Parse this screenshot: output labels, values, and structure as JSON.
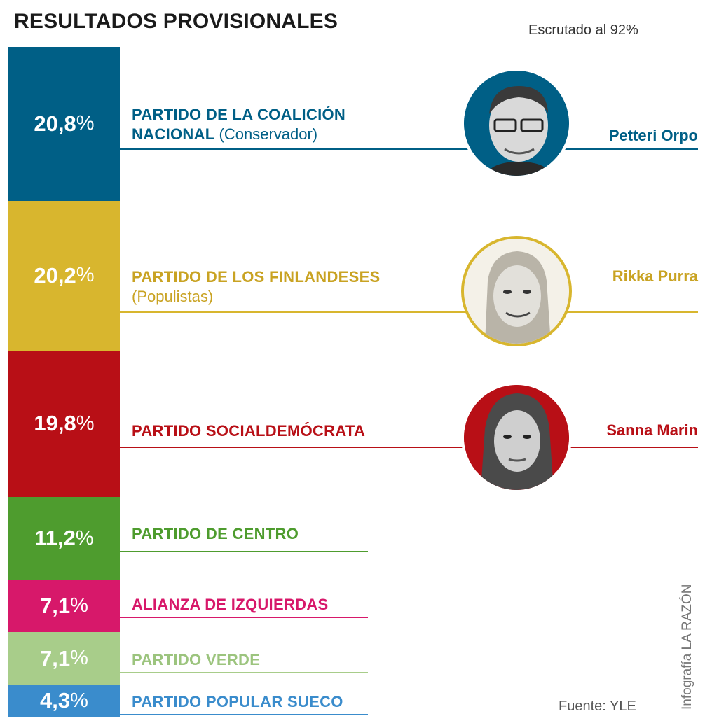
{
  "header": {
    "title": "RESULTADOS PROVISIONALES",
    "subtitle": "Escrutado al 92%"
  },
  "chart_data": {
    "type": "bar",
    "orientation": "vertical-stacked",
    "title": "RESULTADOS PROVISIONALES",
    "categories": [
      "PARTIDO DE LA COALICIÓN NACIONAL (Conservador)",
      "PARTIDO DE LOS FINLANDESES (Populistas)",
      "PARTIDO SOCIALDEMÓCRATA",
      "PARTIDO DE CENTRO",
      "ALIANZA DE IZQUIERDAS",
      "PARTIDO VERDE",
      "PARTIDO POPULAR SUECO"
    ],
    "values": [
      20.8,
      20.2,
      19.8,
      11.2,
      7.1,
      7.1,
      4.3
    ],
    "unit": "%"
  },
  "parties": [
    {
      "value_text": "20,8",
      "pct": "%",
      "name": "PARTIDO DE LA COALICIÓN",
      "name2": "NACIONAL",
      "note": "(Conservador)",
      "color": "#005f86",
      "leader": "Petteri Orpo"
    },
    {
      "value_text": "20,2",
      "pct": "%",
      "name": "PARTIDO DE LOS FINLANDESES",
      "name2": "",
      "note": "(Populistas)",
      "color": "#d8b62e",
      "leader": "Rikka Purra"
    },
    {
      "value_text": "19,8",
      "pct": "%",
      "name": "PARTIDO SOCIALDEMÓCRATA",
      "name2": "",
      "note": "",
      "color": "#b80f16",
      "leader": "Sanna Marin"
    },
    {
      "value_text": "11,2",
      "pct": "%",
      "name": "PARTIDO DE CENTRO",
      "name2": "",
      "note": "",
      "color": "#4e9c2e",
      "leader": ""
    },
    {
      "value_text": "7,1",
      "pct": "%",
      "name": "ALIANZA DE IZQUIERDAS",
      "name2": "",
      "note": "",
      "color": "#d7186a",
      "leader": ""
    },
    {
      "value_text": "7,1",
      "pct": "%",
      "name": "PARTIDO VERDE",
      "name2": "",
      "note": "",
      "color": "#a8cd8a",
      "leader": ""
    },
    {
      "value_text": "4,3",
      "pct": "%",
      "name": "PARTIDO POPULAR SUECO",
      "name2": "",
      "note": "",
      "color": "#3a8ccc",
      "leader": ""
    }
  ],
  "footer": {
    "source": "Fuente: YLE",
    "credit": "Infografía LA RAZÓN"
  }
}
